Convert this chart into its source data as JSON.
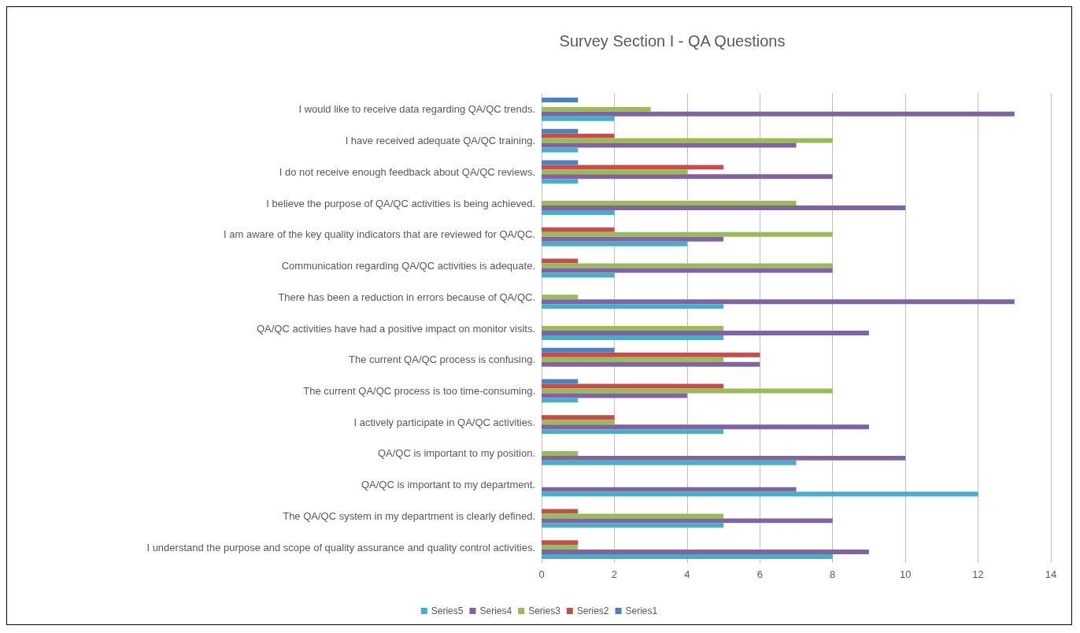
{
  "chart_data": {
    "type": "bar",
    "orientation": "horizontal",
    "title": "Survey Section I - QA Questions",
    "categories": [
      "I would like to receive data regarding QA/QC trends.",
      "I have received adequate QA/QC training.",
      "I do not receive enough feedback about QA/QC reviews.",
      "I believe the purpose of QA/QC activities is being achieved.",
      "I am aware of the key quality indicators that are reviewed for QA/QC.",
      "Communication regarding QA/QC activities is adequate.",
      "There has been a reduction in errors because of QA/QC.",
      "QA/QC activities have had a positive impact on monitor visits.",
      "The current QA/QC process is confusing.",
      "The current QA/QC process is too time-consuming.",
      "I actively participate in QA/QC activities.",
      "QA/QC is important to my position.",
      "QA/QC is important to my department.",
      "The QA/QC system in my department is clearly defined.",
      "I understand the purpose and scope of quality assurance and quality control activities."
    ],
    "series": [
      {
        "name": "Series1",
        "color": "#4f81bd",
        "values": [
          1,
          1,
          1,
          0,
          0,
          0,
          0,
          0,
          2,
          1,
          0,
          0,
          0,
          0,
          0
        ]
      },
      {
        "name": "Series2",
        "color": "#c0504d",
        "values": [
          0,
          2,
          5,
          0,
          2,
          1,
          0,
          0,
          6,
          5,
          2,
          0,
          0,
          1,
          1
        ]
      },
      {
        "name": "Series3",
        "color": "#9bbb59",
        "values": [
          3,
          8,
          4,
          7,
          8,
          8,
          1,
          5,
          5,
          8,
          2,
          1,
          0,
          5,
          1
        ]
      },
      {
        "name": "Series4",
        "color": "#8064a2",
        "values": [
          13,
          7,
          8,
          10,
          5,
          8,
          13,
          9,
          6,
          4,
          9,
          10,
          7,
          8,
          9
        ]
      },
      {
        "name": "Series5",
        "color": "#4bacc6",
        "values": [
          2,
          1,
          1,
          2,
          4,
          2,
          5,
          5,
          0,
          1,
          5,
          7,
          12,
          5,
          8
        ]
      }
    ],
    "xlim": [
      0,
      14
    ],
    "xticks": [
      0,
      2,
      4,
      6,
      8,
      10,
      12,
      14
    ],
    "grid": "x",
    "legend": "bottom"
  }
}
